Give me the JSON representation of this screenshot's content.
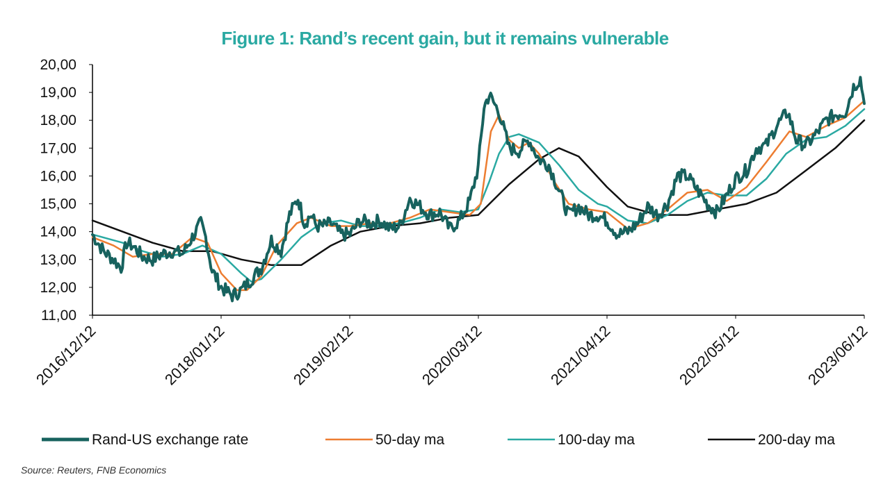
{
  "chart_data": {
    "type": "line",
    "title": "Figure 1: Rand’s recent gain, but it remains vulnerable",
    "xlabel": "",
    "ylabel": "",
    "x_tick_labels": [
      "2016/12/12",
      "2018/01/12",
      "2019/02/12",
      "2020/03/12",
      "2021/04/12",
      "2022/05/12",
      "2023/06/12"
    ],
    "y_tick_labels": [
      "11,00",
      "12,00",
      "13,00",
      "14,00",
      "15,00",
      "16,00",
      "17,00",
      "18,00",
      "19,00",
      "20,00"
    ],
    "ylim": [
      11,
      20
    ],
    "xlim": [
      "2016-12-12",
      "2023-06-12"
    ],
    "grid": false,
    "legend_position": "bottom",
    "series": [
      {
        "name": "Rand-US exchange rate",
        "color": "#17625e",
        "x": [
          "2016-12-12",
          "2017-01-15",
          "2017-02-15",
          "2017-03-10",
          "2017-03-27",
          "2017-04-15",
          "2017-05-15",
          "2017-06-15",
          "2017-07-15",
          "2017-08-15",
          "2017-09-15",
          "2017-10-15",
          "2017-11-10",
          "2017-11-25",
          "2017-12-15",
          "2018-01-12",
          "2018-02-15",
          "2018-03-15",
          "2018-04-15",
          "2018-05-15",
          "2018-06-15",
          "2018-07-15",
          "2018-08-10",
          "2018-09-05",
          "2018-09-25",
          "2018-10-15",
          "2018-11-01",
          "2018-11-20",
          "2018-12-15",
          "2019-01-15",
          "2019-02-12",
          "2019-03-15",
          "2019-04-15",
          "2019-05-15",
          "2019-06-15",
          "2019-07-15",
          "2019-08-15",
          "2019-09-15",
          "2019-10-15",
          "2019-11-15",
          "2019-12-15",
          "2020-01-15",
          "2020-02-15",
          "2020-03-12",
          "2020-03-30",
          "2020-04-15",
          "2020-05-15",
          "2020-06-15",
          "2020-07-15",
          "2020-08-15",
          "2020-09-15",
          "2020-10-15",
          "2020-11-15",
          "2020-12-15",
          "2021-01-15",
          "2021-02-15",
          "2021-03-15",
          "2021-04-12",
          "2021-05-15",
          "2021-06-15",
          "2021-07-15",
          "2021-08-15",
          "2021-09-15",
          "2021-10-15",
          "2021-11-15",
          "2021-12-15",
          "2022-01-15",
          "2022-02-15",
          "2022-03-15",
          "2022-04-15",
          "2022-05-12",
          "2022-06-15",
          "2022-07-15",
          "2022-08-15",
          "2022-09-15",
          "2022-10-20",
          "2022-11-15",
          "2022-12-15",
          "2023-01-15",
          "2023-02-15",
          "2023-03-15",
          "2023-04-15",
          "2023-05-10",
          "2023-05-31",
          "2023-06-12"
        ],
        "values": [
          13.9,
          13.3,
          13.0,
          12.7,
          13.6,
          13.5,
          13.1,
          13.0,
          13.2,
          13.3,
          13.2,
          13.8,
          14.3,
          13.8,
          12.6,
          12.0,
          11.7,
          11.9,
          12.3,
          12.7,
          13.7,
          13.3,
          14.6,
          15.2,
          14.3,
          14.6,
          14.2,
          14.2,
          14.3,
          13.9,
          13.9,
          14.4,
          14.3,
          14.4,
          14.1,
          14.2,
          15.2,
          14.9,
          14.6,
          14.7,
          14.1,
          14.4,
          15.1,
          16.3,
          18.5,
          18.9,
          18.3,
          17.0,
          16.9,
          17.3,
          16.6,
          16.4,
          15.5,
          14.6,
          14.9,
          14.6,
          14.6,
          14.4,
          13.9,
          14.0,
          14.3,
          14.9,
          14.6,
          15.0,
          16.0,
          16.0,
          15.5,
          15.0,
          14.7,
          15.3,
          15.9,
          16.2,
          17.0,
          17.1,
          17.8,
          18.3,
          17.3,
          17.1,
          17.5,
          18.0,
          18.2,
          18.3,
          19.2,
          19.5,
          18.6
        ]
      },
      {
        "name": "50-day ma",
        "color": "#ed7d31",
        "x": [
          "2016-12-12",
          "2017-02-15",
          "2017-04-15",
          "2017-06-15",
          "2017-08-15",
          "2017-10-15",
          "2017-12-01",
          "2018-01-12",
          "2018-03-01",
          "2018-04-01",
          "2018-05-15",
          "2018-07-01",
          "2018-09-01",
          "2018-10-15",
          "2018-12-15",
          "2019-02-12",
          "2019-04-15",
          "2019-06-15",
          "2019-08-15",
          "2019-10-15",
          "2019-12-15",
          "2020-02-15",
          "2020-03-20",
          "2020-04-20",
          "2020-05-15",
          "2020-06-15",
          "2020-07-15",
          "2020-08-15",
          "2020-09-15",
          "2020-11-01",
          "2020-12-15",
          "2021-02-15",
          "2021-04-12",
          "2021-06-15",
          "2021-08-15",
          "2021-10-15",
          "2021-12-15",
          "2022-02-15",
          "2022-04-15",
          "2022-06-15",
          "2022-08-15",
          "2022-10-25",
          "2022-12-15",
          "2023-02-15",
          "2023-04-15",
          "2023-06-12"
        ],
        "values": [
          13.8,
          13.5,
          13.1,
          13.2,
          13.2,
          13.8,
          13.6,
          12.5,
          11.9,
          11.9,
          12.4,
          13.5,
          14.3,
          14.5,
          14.2,
          14.2,
          14.3,
          14.3,
          14.5,
          14.8,
          14.7,
          14.6,
          15.0,
          17.6,
          18.2,
          17.3,
          17.0,
          17.2,
          16.8,
          15.8,
          15.0,
          14.8,
          14.7,
          14.1,
          14.3,
          14.8,
          15.4,
          15.5,
          15.1,
          15.6,
          16.5,
          17.6,
          17.4,
          17.8,
          18.1,
          18.7
        ]
      },
      {
        "name": "100-day ma",
        "color": "#2aa9a2",
        "x": [
          "2016-12-12",
          "2017-03-15",
          "2017-05-15",
          "2017-07-15",
          "2017-09-15",
          "2017-11-15",
          "2018-01-12",
          "2018-03-15",
          "2018-04-15",
          "2018-05-15",
          "2018-07-15",
          "2018-09-15",
          "2018-11-15",
          "2019-01-15",
          "2019-03-15",
          "2019-05-15",
          "2019-07-15",
          "2019-09-15",
          "2019-11-15",
          "2020-01-15",
          "2020-03-12",
          "2020-04-15",
          "2020-05-15",
          "2020-06-15",
          "2020-07-15",
          "2020-09-15",
          "2020-11-15",
          "2021-01-15",
          "2021-03-15",
          "2021-04-12",
          "2021-06-15",
          "2021-08-15",
          "2021-10-15",
          "2021-12-15",
          "2022-02-15",
          "2022-04-15",
          "2022-06-15",
          "2022-08-15",
          "2022-10-15",
          "2022-12-15",
          "2023-02-15",
          "2023-04-15",
          "2023-06-12"
        ],
        "values": [
          13.9,
          13.6,
          13.3,
          13.1,
          13.2,
          13.5,
          13.2,
          12.5,
          12.2,
          12.3,
          13.0,
          13.8,
          14.3,
          14.4,
          14.2,
          14.2,
          14.3,
          14.5,
          14.8,
          14.7,
          14.8,
          15.8,
          16.8,
          17.4,
          17.5,
          17.2,
          16.4,
          15.5,
          15.0,
          14.9,
          14.4,
          14.3,
          14.6,
          15.1,
          15.4,
          15.3,
          15.3,
          15.9,
          16.8,
          17.3,
          17.4,
          17.8,
          18.4
        ]
      },
      {
        "name": "200-day ma",
        "color": "#111111",
        "x": [
          "2016-12-12",
          "2017-03-15",
          "2017-06-15",
          "2017-09-15",
          "2017-12-15",
          "2018-03-15",
          "2018-06-15",
          "2018-09-15",
          "2018-12-15",
          "2019-03-15",
          "2019-06-15",
          "2019-09-15",
          "2019-12-15",
          "2020-03-12",
          "2020-06-15",
          "2020-09-15",
          "2020-11-15",
          "2021-01-15",
          "2021-04-12",
          "2021-06-15",
          "2021-09-15",
          "2021-12-15",
          "2022-03-15",
          "2022-06-15",
          "2022-09-15",
          "2022-12-15",
          "2023-03-15",
          "2023-06-12"
        ],
        "values": [
          14.4,
          14.0,
          13.6,
          13.3,
          13.3,
          13.0,
          12.8,
          12.8,
          13.5,
          14.0,
          14.2,
          14.3,
          14.5,
          14.6,
          15.7,
          16.6,
          17.0,
          16.7,
          15.6,
          14.9,
          14.6,
          14.6,
          14.8,
          15.0,
          15.4,
          16.2,
          17.0,
          18.0
        ]
      }
    ]
  },
  "source_note": "Source: Reuters, FNB Economics"
}
